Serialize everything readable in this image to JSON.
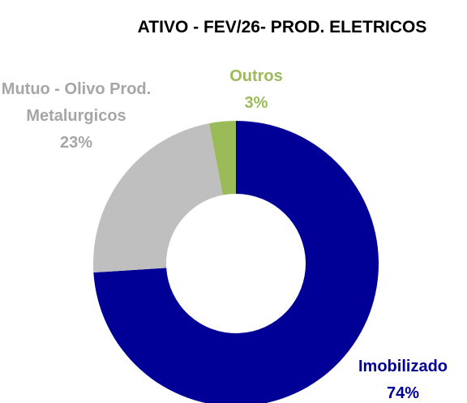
{
  "chart_data": {
    "type": "donut",
    "title": "ATIVO - FEV/26- PROD. ELETRICOS",
    "categories": [
      "Imobilizado",
      "Mutuo - Olivo Prod. Metalurgicos",
      "Outros"
    ],
    "values": [
      74,
      23,
      3
    ],
    "value_labels": [
      "74%",
      "23%",
      "3%"
    ],
    "colors": [
      "#000096",
      "#BFBFBF",
      "#9BBB59"
    ],
    "label_colors": [
      "#000096",
      "#A6A6A6",
      "#9BBB59"
    ]
  }
}
